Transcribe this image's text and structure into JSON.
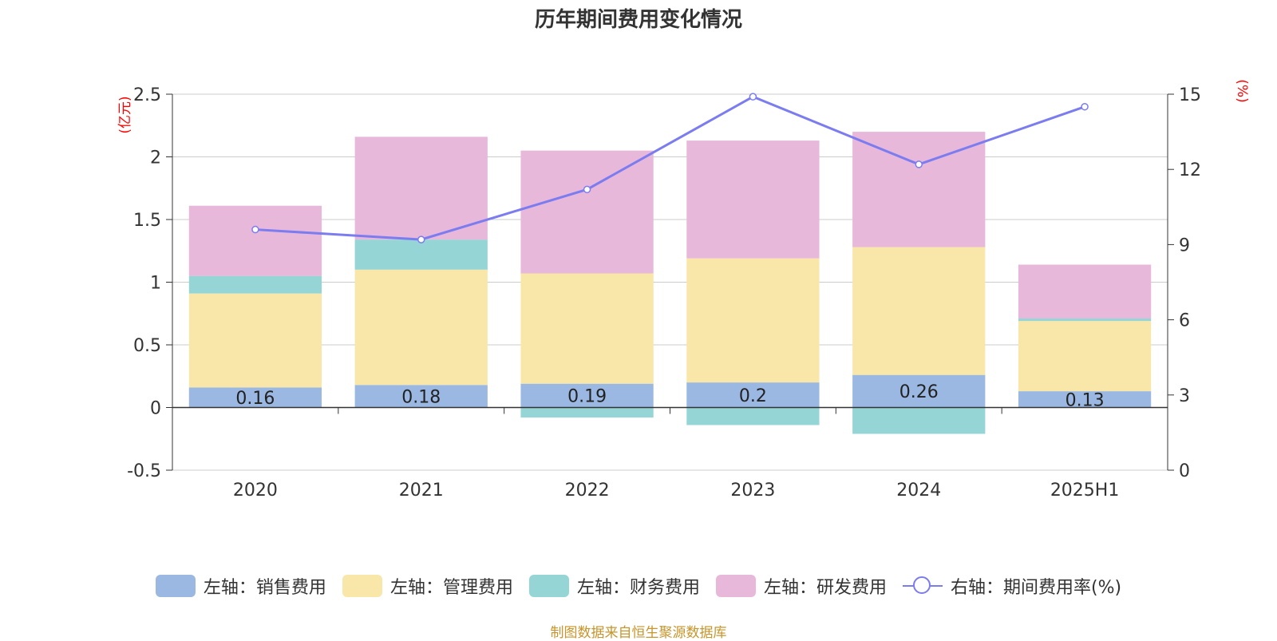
{
  "chart_data": {
    "type": "bar",
    "title": "历年期间费用变化情况",
    "categories": [
      "2020",
      "2021",
      "2022",
      "2023",
      "2024",
      "2025H1"
    ],
    "y_left": {
      "label": "(亿元)",
      "ylim": [
        -0.5,
        2.5
      ],
      "ticks": [
        -0.5,
        0,
        0.5,
        1,
        1.5,
        2,
        2.5
      ],
      "tick_labels": [
        "-0.5",
        "0",
        "0.5",
        "1",
        "1.5",
        "2",
        "2.5"
      ]
    },
    "y_right": {
      "label": "(%)",
      "ylim": [
        0,
        15
      ],
      "ticks": [
        0,
        3,
        6,
        9,
        12,
        15
      ],
      "tick_labels": [
        "0",
        "3",
        "6",
        "9",
        "12",
        "15"
      ]
    },
    "series": [
      {
        "name": "左轴：销售费用",
        "kind": "bar",
        "axis": "left",
        "color": "#9bb8e3",
        "values": [
          0.16,
          0.18,
          0.19,
          0.2,
          0.26,
          0.13
        ],
        "labels": [
          "0.16",
          "0.18",
          "0.19",
          "0.2",
          "0.26",
          "0.13"
        ]
      },
      {
        "name": "左轴：管理费用",
        "kind": "bar",
        "axis": "left",
        "color": "#f8e7a8",
        "values": [
          0.75,
          0.92,
          0.88,
          0.99,
          1.02,
          0.56
        ]
      },
      {
        "name": "左轴：财务费用",
        "kind": "bar",
        "axis": "left",
        "color": "#96d5d5",
        "values": [
          0.14,
          0.24,
          -0.08,
          -0.14,
          -0.21,
          0.02
        ]
      },
      {
        "name": "左轴：研发费用",
        "kind": "bar",
        "axis": "left",
        "color": "#e8b8da",
        "values": [
          0.56,
          0.82,
          0.98,
          0.94,
          0.92,
          0.43
        ]
      },
      {
        "name": "右轴：期间费用率(%)",
        "kind": "line",
        "axis": "right",
        "color": "#7b7cf0",
        "values": [
          9.6,
          9.2,
          11.2,
          14.9,
          12.2,
          14.5
        ]
      }
    ],
    "legend_position": "bottom",
    "grid": true
  },
  "source": "制图数据来自恒生聚源数据库"
}
